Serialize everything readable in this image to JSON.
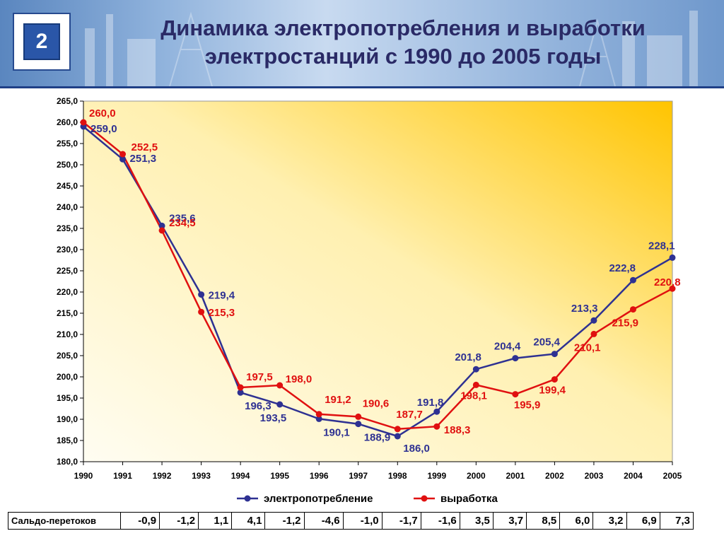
{
  "slide": {
    "number": "2"
  },
  "title": {
    "line1": "Динамика электропотребления и выработки",
    "line2": "электростанций с 1990 до 2005 годы"
  },
  "colors": {
    "consumption": "#2e3192",
    "generation": "#e01010",
    "plot_bg_light": "#fffbe6",
    "plot_bg_dark": "#ffc800"
  },
  "chart_data": {
    "type": "line",
    "categories": [
      "1990",
      "1991",
      "1992",
      "1993",
      "1994",
      "1995",
      "1996",
      "1997",
      "1998",
      "1999",
      "2000",
      "2001",
      "2002",
      "2003",
      "2004",
      "2005"
    ],
    "series": [
      {
        "name": "электропотребление",
        "color": "#2e3192",
        "values": [
          259.0,
          251.3,
          235.6,
          219.4,
          196.3,
          193.5,
          190.1,
          188.9,
          186.0,
          191.8,
          201.8,
          204.4,
          205.4,
          213.3,
          222.8,
          228.1
        ],
        "labels": [
          "259,0",
          "251,3",
          "235,6",
          "219,4",
          "196,3",
          "193,5",
          "190,1",
          "188,9",
          "186,0",
          "191,8",
          "201,8",
          "204,4",
          "205,4",
          "213,3",
          "222,8",
          "228,1"
        ]
      },
      {
        "name": "выработка",
        "color": "#e01010",
        "values": [
          260.0,
          252.5,
          234.5,
          215.3,
          197.5,
          198.0,
          191.2,
          190.6,
          187.7,
          188.3,
          198.1,
          195.9,
          199.4,
          210.1,
          215.9,
          220.8
        ],
        "labels": [
          "260,0",
          "252,5",
          "234,5",
          "215,3",
          "197,5",
          "198,0",
          "191,2",
          "190,6",
          "187,7",
          "188,3",
          "198,1",
          "195,9",
          "199,4",
          "210,1",
          "215,9",
          "220,8"
        ]
      }
    ],
    "ylim": [
      180.0,
      265.0
    ],
    "yticks": [
      180,
      185,
      190,
      195,
      200,
      205,
      210,
      215,
      220,
      225,
      230,
      235,
      240,
      245,
      250,
      255,
      260,
      265
    ],
    "ytick_labels": [
      "180,0",
      "185,0",
      "190,0",
      "195,0",
      "200,0",
      "205,0",
      "210,0",
      "215,0",
      "220,0",
      "225,0",
      "230,0",
      "235,0",
      "240,0",
      "245,0",
      "250,0",
      "255,0",
      "260,0",
      "265,0"
    ],
    "grid": false,
    "legend_position": "bottom"
  },
  "table": {
    "label": "Сальдо-перетоков",
    "values": [
      "-0,9",
      "-1,2",
      "1,1",
      "4,1",
      "-1,2",
      "-4,6",
      "-1,0",
      "-1,7",
      "-1,6",
      "3,5",
      "3,7",
      "8,5",
      "6,0",
      "3,2",
      "6,9",
      "7,3"
    ]
  }
}
